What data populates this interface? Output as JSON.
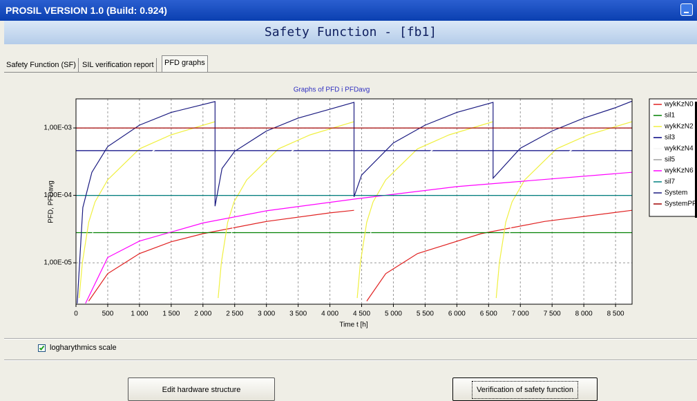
{
  "window": {
    "title": "PROSIL VERSION 1.0 (Build: 0.924)"
  },
  "header": {
    "title": "Safety Function - [fb1]"
  },
  "tabs": [
    "Safety Function (SF)",
    "SIL verification report",
    "PFD graphs"
  ],
  "checkbox": {
    "label": "logharythmics scale",
    "checked": true
  },
  "buttons": [
    "Edit hardware structure",
    "Verification of safety function"
  ],
  "chart_data": {
    "type": "line",
    "title": "Graphs of PFD i PFDavg",
    "x_label": "Time t [h]",
    "y_label": "PFD, PFDavg",
    "log_scale": true,
    "grid": true,
    "legend": "right",
    "xlim": [
      0,
      8760
    ],
    "ylim": [
      2.43e-06,
      0.0027
    ],
    "xticks": [
      0,
      500,
      {
        "value": 1000,
        "label": "1 000"
      },
      {
        "value": 1500,
        "label": "1 500"
      },
      {
        "value": 2000,
        "label": "2 000"
      },
      {
        "value": 2500,
        "label": "2 500"
      },
      {
        "value": 3000,
        "label": "3 000"
      },
      {
        "value": 3500,
        "label": "3 500"
      },
      {
        "value": 4000,
        "label": "4 000"
      },
      {
        "value": 4500,
        "label": "4 500"
      },
      {
        "value": 5000,
        "label": "5 000"
      },
      {
        "value": 5500,
        "label": "5 500"
      },
      {
        "value": 6000,
        "label": "6 000"
      },
      {
        "value": 6500,
        "label": "6 500"
      },
      {
        "value": 7000,
        "label": "7 000"
      },
      {
        "value": 7500,
        "label": "7 500"
      },
      {
        "value": 8000,
        "label": "8 000"
      },
      {
        "value": 8500,
        "label": "8 500"
      }
    ],
    "yticks": [
      {
        "value": 0.001,
        "label": "1,00E-03"
      },
      {
        "value": 0.0001,
        "label": "1,00E-04"
      },
      {
        "value": 1e-05,
        "label": "1,00E-05"
      }
    ],
    "series": [
      {
        "name": "wykKzN0",
        "color": "#e02020",
        "x": [
          200,
          500,
          1000,
          1500,
          2000,
          3000,
          4000,
          4380,
          null,
          4580,
          4880,
          5380,
          6380,
          7380,
          8760
        ],
        "values": [
          2.7e-06,
          6.9e-06,
          1.37e-05,
          2.05e-05,
          2.7e-05,
          4.1e-05,
          5.5e-05,
          6e-05,
          null,
          2.7e-06,
          6.9e-06,
          1.37e-05,
          2.7e-05,
          4.1e-05,
          6e-05
        ]
      },
      {
        "name": "sil1",
        "color": "#008000",
        "x": [
          0,
          8760
        ],
        "values": [
          2.8e-05,
          2.8e-05
        ]
      },
      {
        "name": "wykKzN2",
        "color": "#f0f040",
        "x": [
          50,
          100,
          200,
          300,
          500,
          1000,
          1500,
          2190,
          null,
          2240,
          2290,
          2390,
          2490,
          2690,
          3190,
          3690,
          4380,
          null,
          4430,
          4480,
          4580,
          4680,
          4880,
          5380,
          5880,
          6570,
          null,
          6620,
          6670,
          6770,
          6870,
          7070,
          7570,
          8070,
          8760
        ],
        "values": [
          3e-06,
          1e-05,
          4e-05,
          8e-05,
          0.00017,
          0.00049,
          0.00079,
          0.00124,
          null,
          3e-06,
          1e-05,
          4e-05,
          8e-05,
          0.00017,
          0.00049,
          0.00079,
          0.00124,
          null,
          3e-06,
          1e-05,
          4e-05,
          8e-05,
          0.00017,
          0.00049,
          0.00079,
          0.00124,
          null,
          3e-06,
          1e-05,
          4e-05,
          8e-05,
          0.00017,
          0.00049,
          0.00079,
          0.00124
        ]
      },
      {
        "name": "sil3",
        "color": "#000080",
        "x": [
          0,
          8760
        ],
        "values": [
          0.00046,
          0.00046
        ]
      },
      {
        "name": "wykKzN4",
        "color": "#ffffff",
        "x": [
          100,
          200,
          300,
          500,
          1000,
          1500,
          2190,
          null,
          2290,
          2390,
          2490,
          2690,
          3190,
          3690,
          4380,
          null,
          4480,
          4580,
          4680,
          4880,
          5380,
          5880,
          6570,
          null,
          6670,
          6770,
          6870,
          7070,
          7570,
          8070,
          8760
        ],
        "values": [
          3e-06,
          1.5e-05,
          4e-05,
          0.0001,
          0.00035,
          0.00065,
          0.0011,
          null,
          3e-06,
          1.5e-05,
          4e-05,
          0.0001,
          0.00035,
          0.00065,
          0.0011,
          null,
          3e-06,
          1.5e-05,
          4e-05,
          0.0001,
          0.00035,
          0.00065,
          0.0011,
          null,
          3e-06,
          1.5e-05,
          4e-05,
          0.0001,
          0.00035,
          0.00065,
          0.0011
        ]
      },
      {
        "name": "sil5",
        "color": "#a0a0a0",
        "x": [
          0,
          8760
        ],
        "values": [
          0.0001,
          0.0001
        ]
      },
      {
        "name": "wykKzN6",
        "color": "#ff00ff",
        "x": [
          150,
          500,
          1000,
          2000,
          3000,
          4380,
          6000,
          8760
        ],
        "values": [
          2.5e-06,
          1.2e-05,
          2.1e-05,
          3.9e-05,
          5.9e-05,
          8.8e-05,
          0.000135,
          0.00022
        ]
      },
      {
        "name": "sil7",
        "color": "#008080",
        "x": [
          0,
          8760
        ],
        "values": [
          0.0001,
          0.0001
        ]
      },
      {
        "name": "System",
        "color": "#1a1a80",
        "x": [
          20,
          108,
          250,
          500,
          1000,
          1500,
          2190,
          2190,
          2300,
          2500,
          3000,
          3500,
          4000,
          4380,
          4380,
          4500,
          5000,
          5500,
          6000,
          6570,
          6570,
          7000,
          7500,
          8000,
          8500,
          8760
        ],
        "values": [
          2.5e-06,
          6.6e-05,
          0.00022,
          0.00053,
          0.0011,
          0.0017,
          0.00246,
          6.9e-05,
          0.00025,
          0.00045,
          0.0009,
          0.0014,
          0.0019,
          0.0024,
          9.5e-05,
          0.0002,
          0.0006,
          0.0011,
          0.0017,
          0.0024,
          0.00018,
          0.0005,
          0.0009,
          0.0014,
          0.002,
          0.0025
        ]
      },
      {
        "name": "SystemPF",
        "color": "#a00000",
        "x": [
          0,
          8760
        ],
        "values": [
          0.001,
          0.001
        ]
      }
    ]
  }
}
